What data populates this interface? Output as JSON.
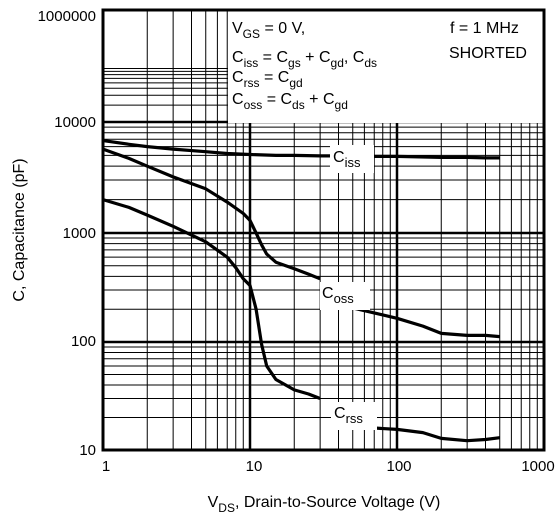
{
  "chart_data": {
    "type": "line",
    "xlabel_main": "V",
    "xlabel_sub": "DS",
    "xlabel_rest": ", Drain-to-Source Voltage (V)",
    "ylabel": "C, Capacitance (pF)",
    "x_scale": "log",
    "y_scale": "log",
    "xlim": [
      1,
      1000
    ],
    "ylim": [
      10,
      1000000
    ],
    "grid": true,
    "x_ticks": [
      "1",
      "10",
      "100",
      "1000"
    ],
    "y_ticks": [
      "10",
      "100",
      "1000",
      "10000",
      "1000000"
    ],
    "annotations": {
      "conditions": {
        "line1_main": "V",
        "line1_sub": "GS",
        "line1_rest": " = 0 V,",
        "line2": [
          {
            "t": "C",
            "sub": false
          },
          {
            "t": "iss",
            "sub": true
          },
          {
            "t": " = C",
            "sub": false
          },
          {
            "t": "gs",
            "sub": true
          },
          {
            "t": " + C",
            "sub": false
          },
          {
            "t": "gd",
            "sub": true
          },
          {
            "t": ", C",
            "sub": false
          },
          {
            "t": "ds",
            "sub": true
          }
        ],
        "line3": [
          {
            "t": "C",
            "sub": false
          },
          {
            "t": "rss",
            "sub": true
          },
          {
            "t": " = C",
            "sub": false
          },
          {
            "t": "gd",
            "sub": true
          }
        ],
        "line4": [
          {
            "t": "C",
            "sub": false
          },
          {
            "t": "oss",
            "sub": true
          },
          {
            "t": " = C",
            "sub": false
          },
          {
            "t": "ds",
            "sub": true
          },
          {
            "t": " + C",
            "sub": false
          },
          {
            "t": "gd",
            "sub": true
          }
        ]
      },
      "freq": "f = 1 MHz",
      "shorted": "SHORTED"
    },
    "series": [
      {
        "name_main": "C",
        "name_sub": "iss",
        "color": "#000000",
        "x": [
          1,
          1.5,
          2,
          3,
          5,
          7,
          10,
          15,
          20,
          30,
          50,
          70,
          100,
          200,
          300,
          400,
          500
        ],
        "y": [
          6800,
          6300,
          6000,
          5700,
          5400,
          5200,
          5100,
          5000,
          5000,
          4950,
          4950,
          4900,
          4900,
          4800,
          4800,
          4750,
          4750
        ]
      },
      {
        "name_main": "C",
        "name_sub": "oss",
        "color": "#000000",
        "x": [
          1,
          1.5,
          2,
          3,
          5,
          7,
          9,
          10,
          11,
          12,
          13,
          15,
          20,
          25,
          30
        ],
        "y": [
          5700,
          4700,
          4000,
          3200,
          2500,
          1900,
          1500,
          1300,
          1000,
          780,
          640,
          540,
          470,
          420,
          380
        ],
        "x2": [
          50,
          70,
          100,
          150,
          200,
          300,
          400,
          500
        ],
        "y2": [
          205,
          185,
          165,
          140,
          120,
          115,
          115,
          112
        ]
      },
      {
        "name_main": "C",
        "name_sub": "rss",
        "color": "#000000",
        "x": [
          1,
          1.5,
          2,
          3,
          5,
          7,
          8,
          9,
          10,
          11,
          12,
          13,
          15,
          20,
          25,
          30
        ],
        "y": [
          2000,
          1700,
          1450,
          1150,
          830,
          600,
          480,
          380,
          330,
          200,
          95,
          60,
          45,
          36,
          33,
          30
        ],
        "x2": [
          70,
          100,
          150,
          200,
          300,
          400,
          500
        ],
        "y2": [
          16,
          15.5,
          14.5,
          12.8,
          12.2,
          12.5,
          13
        ]
      }
    ]
  }
}
